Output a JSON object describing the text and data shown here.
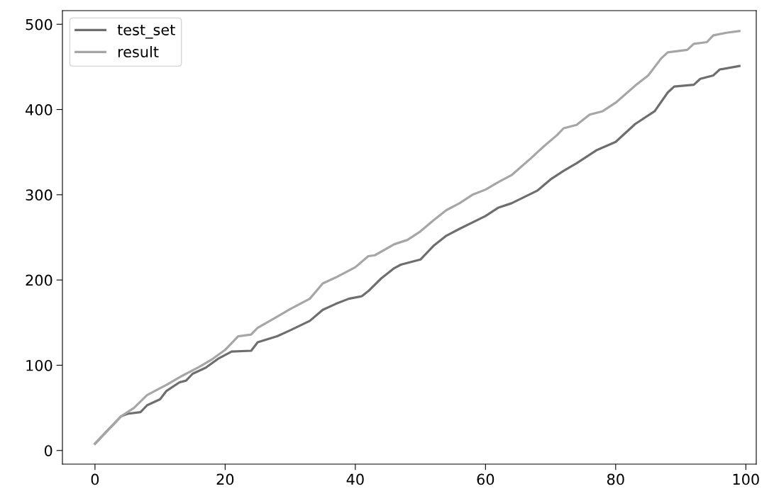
{
  "chart_data": {
    "type": "line",
    "xlim": [
      -5,
      101.6
    ],
    "ylim": [
      -16,
      516
    ],
    "xticks": [
      0,
      20,
      40,
      60,
      80,
      100
    ],
    "yticks": [
      0,
      100,
      200,
      300,
      400,
      500
    ],
    "legend": "top left",
    "grid": false,
    "marker": "none",
    "line_style": "solid",
    "series": [
      {
        "name": "test_set",
        "color": "#6e6e6e",
        "x": [
          0,
          4,
          5,
          7,
          8,
          10,
          11,
          13,
          14,
          15,
          17,
          19,
          21,
          24,
          25,
          28,
          30,
          33,
          35,
          37,
          39,
          41,
          42,
          44,
          46,
          47,
          50,
          52,
          54,
          56,
          60,
          62,
          64,
          68,
          70,
          72,
          74,
          77,
          80,
          83,
          86,
          88,
          89,
          92,
          93,
          95,
          96,
          99
        ],
        "values": [
          8,
          40,
          43,
          45,
          53,
          60,
          70,
          80,
          82,
          90,
          97,
          108,
          116,
          117,
          127,
          134,
          141,
          152,
          165,
          172,
          178,
          181,
          187,
          202,
          214,
          218,
          224,
          240,
          252,
          260,
          275,
          285,
          290,
          305,
          318,
          328,
          337,
          352,
          362,
          383,
          398,
          420,
          427,
          429,
          436,
          440,
          447,
          451
        ]
      },
      {
        "name": "result",
        "color": "#a6a6a6",
        "x": [
          0,
          4,
          6,
          8,
          10,
          11,
          13,
          16,
          18,
          20,
          22,
          24,
          25,
          28,
          30,
          33,
          35,
          37,
          40,
          42,
          43,
          46,
          48,
          50,
          52,
          54,
          56,
          58,
          60,
          62,
          64,
          67,
          69,
          71,
          72,
          74,
          76,
          78,
          80,
          83,
          85,
          87,
          88,
          91,
          92,
          94,
          95,
          97,
          99
        ],
        "values": [
          8,
          40,
          50,
          65,
          73,
          77,
          86,
          98,
          107,
          118,
          134,
          136,
          144,
          157,
          166,
          178,
          196,
          203,
          215,
          228,
          229,
          242,
          247,
          257,
          270,
          282,
          290,
          300,
          306,
          315,
          323,
          343,
          357,
          370,
          378,
          382,
          394,
          398,
          408,
          428,
          440,
          460,
          467,
          470,
          477,
          479,
          487,
          490,
          492
        ]
      }
    ]
  }
}
